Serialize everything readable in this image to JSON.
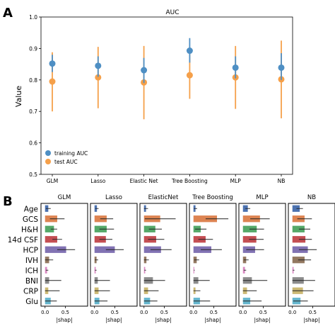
{
  "panel_a_letter": "A",
  "panel_b_letter": "B",
  "chart_data": [
    {
      "type": "scatter",
      "title": "AUC",
      "xlabel": "",
      "ylabel": "Value",
      "ylim": [
        0.5,
        1.0
      ],
      "yticks": [
        "0.5",
        "0.6",
        "0.7",
        "0.8",
        "0.9",
        "1.0"
      ],
      "categories": [
        "GLM",
        "Lasso",
        "Elastic Net",
        "Tree Boosting",
        "MLP",
        "NB"
      ],
      "legend_position": "lower-left",
      "series": [
        {
          "name": "training AUC",
          "color": "#4e8fc4",
          "values": [
            0.852,
            0.845,
            0.831,
            0.893,
            0.839,
            0.839
          ],
          "err_low": [
            0.825,
            0.81,
            0.79,
            0.855,
            0.805,
            0.8
          ],
          "err_high": [
            0.88,
            0.875,
            0.87,
            0.933,
            0.875,
            0.885
          ]
        },
        {
          "name": "test AUC",
          "color": "#f5a04a",
          "values": [
            0.795,
            0.808,
            0.792,
            0.815,
            0.808,
            0.802
          ],
          "err_low": [
            0.7,
            0.71,
            0.675,
            0.74,
            0.708,
            0.678
          ],
          "err_high": [
            0.888,
            0.905,
            0.908,
            0.905,
            0.908,
            0.925
          ]
        }
      ]
    },
    {
      "type": "bar",
      "orientation": "horizontal",
      "xlabel": "|shap|",
      "xticks": [
        "0.0",
        "0.5"
      ],
      "xlim": [
        -0.1,
        1.05
      ],
      "features": [
        "Age",
        "GCS",
        "H&H",
        "14d CSF",
        "HCP",
        "IVH",
        "ICH",
        "BNI",
        "CRP",
        "Glu"
      ],
      "feature_colors": [
        "#4c72b0",
        "#dd8452",
        "#55a868",
        "#c44e52",
        "#8172b3",
        "#937860",
        "#da8bc3",
        "#8c8c8c",
        "#ccb974",
        "#64b5cd"
      ],
      "panels": [
        {
          "title": "GLM",
          "values": [
            0.08,
            0.3,
            0.22,
            0.3,
            0.52,
            0.1,
            0.05,
            0.1,
            0.08,
            0.14
          ],
          "errors": [
            0.06,
            0.18,
            0.08,
            0.12,
            0.22,
            0.1,
            0.03,
            0.3,
            0.28,
            0.15
          ]
        },
        {
          "title": "Lasso",
          "values": [
            0.06,
            0.3,
            0.3,
            0.28,
            0.5,
            0.05,
            0.03,
            0.08,
            0.1,
            0.12
          ],
          "errors": [
            0.04,
            0.16,
            0.18,
            0.16,
            0.22,
            0.04,
            0.02,
            0.3,
            0.28,
            0.2
          ]
        },
        {
          "title": "ElasticNet",
          "values": [
            0.05,
            0.4,
            0.28,
            0.3,
            0.42,
            0.06,
            0.03,
            0.22,
            0.1,
            0.15
          ],
          "errors": [
            0.05,
            0.38,
            0.16,
            0.2,
            0.26,
            0.06,
            0.02,
            0.3,
            0.26,
            0.18
          ]
        },
        {
          "title": "Tree Boosting",
          "values": [
            0.05,
            0.58,
            0.18,
            0.3,
            0.44,
            0.08,
            0.02,
            0.12,
            0.05,
            0.16
          ],
          "errors": [
            0.04,
            0.28,
            0.14,
            0.18,
            0.26,
            0.06,
            0.01,
            0.28,
            0.12,
            0.25
          ]
        },
        {
          "title": "MLP",
          "values": [
            0.12,
            0.42,
            0.34,
            0.33,
            0.3,
            0.08,
            0.05,
            0.22,
            0.1,
            0.18
          ],
          "errors": [
            0.06,
            0.24,
            0.18,
            0.18,
            0.22,
            0.06,
            0.03,
            0.38,
            0.24,
            0.28
          ]
        },
        {
          "title": "NB",
          "values": [
            0.18,
            0.3,
            0.3,
            0.32,
            0.38,
            0.3,
            0.03,
            0.28,
            0.26,
            0.2
          ],
          "errors": [
            0.08,
            0.18,
            0.14,
            0.16,
            0.22,
            0.16,
            0.02,
            0.28,
            0.26,
            0.18
          ]
        }
      ]
    }
  ]
}
